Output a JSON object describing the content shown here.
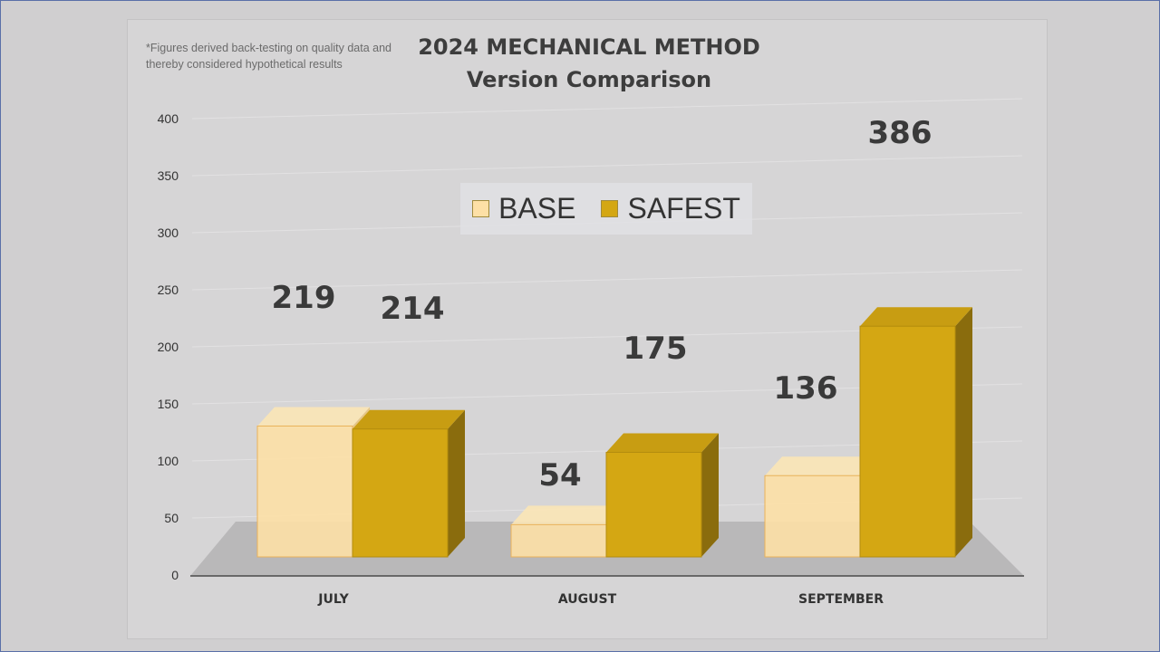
{
  "footnote": "*Figures derived back-testing on quality data and thereby considered hypothetical results",
  "title_line1": "2024 MECHANICAL METHOD",
  "title_line2": "Version Comparison",
  "colors": {
    "base": "#fde0a6",
    "safest": "#d4a713",
    "safest_side": "#8a6c0d",
    "floor": "#b9b8b9"
  },
  "chart_data": {
    "type": "bar",
    "title": "2024 MECHANICAL METHOD Version Comparison",
    "categories": [
      "JULY",
      "AUGUST",
      "SEPTEMBER"
    ],
    "series": [
      {
        "name": "BASE",
        "values": [
          219,
          54,
          136
        ]
      },
      {
        "name": "SAFEST",
        "values": [
          214,
          175,
          386
        ]
      }
    ],
    "ylim": [
      0,
      400
    ],
    "yticks": [
      0,
      50,
      100,
      150,
      200,
      250,
      300,
      350,
      400
    ],
    "legend_position": "top-center",
    "grid": true
  }
}
